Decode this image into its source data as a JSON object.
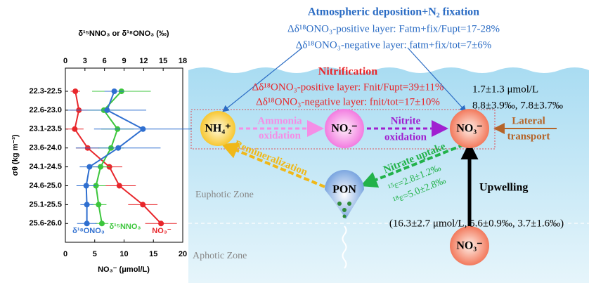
{
  "chart_data": {
    "type": "line",
    "top_axis_title": "δ¹⁵NNO₃ or δ¹⁸ONO₃ (‰)",
    "bottom_axis_title": "NO₃⁻ (μmol/L)",
    "y_axis_title": "σθ (kg m⁻³)",
    "categories": [
      "22.3-22.5",
      "22.6-23.0",
      "23.1-23.5",
      "23.6-24.0",
      "24.1-24.5",
      "24.6-25.0",
      "25.1-25.5",
      "25.6-26.0"
    ],
    "xlim": [
      0,
      20
    ],
    "xticks": [
      0,
      5,
      10,
      15,
      20
    ],
    "x2lim": [
      0,
      18
    ],
    "x2ticks": [
      0,
      3,
      6,
      9,
      12,
      15,
      18
    ],
    "series": [
      {
        "name": "NO₃⁻",
        "color": "#e8262b",
        "axis": "x",
        "values": [
          1.7,
          2.3,
          1.6,
          3.8,
          7.5,
          9.2,
          13.2,
          16.3
        ],
        "errors": [
          0.8,
          1.5,
          1.5,
          2.0,
          2.2,
          2.8,
          2.5,
          2.7
        ]
      },
      {
        "name": "δ¹⁵NNO₃",
        "color": "#3cc63c",
        "axis": "x2",
        "values": [
          8.6,
          5.9,
          8.0,
          7.0,
          5.4,
          4.7,
          5.1,
          5.6
        ],
        "errors": [
          4.5,
          2.5,
          2.5,
          2.0,
          1.5,
          1.5,
          1.2,
          1.0
        ]
      },
      {
        "name": "δ¹⁸ONO₃",
        "color": "#2f6fd0",
        "axis": "x2",
        "values": [
          7.5,
          6.4,
          11.9,
          8.1,
          3.7,
          3.2,
          3.3,
          3.3
        ],
        "errors": [
          1.5,
          6.0,
          7.5,
          6.5,
          1.5,
          1.5,
          1.0,
          1.5
        ]
      }
    ]
  },
  "diagram": {
    "atm_title": "Atmospheric deposition+N₂ fixation",
    "atm_pos": "Δδ¹⁸ONO₃-positive layer: Fatm+fix/Fupt=17-28%",
    "atm_neg": "Δδ¹⁸ONO₃-negative layer: fatm+fix/tot=7±6%",
    "nit_title": "Nitrification",
    "nit_pos": "Δδ¹⁸ONO₃-positive layer: Fnit/Fupt=39±11%",
    "nit_neg": "Δδ¹⁸ONO₃-negative layer: fnit/tot=17±10%",
    "surface_conc": "1.7±1.3 μmol/L",
    "surface_iso": "8.8±3.9‰, 7.8±3.7‰",
    "nodes": [
      "NH₄⁺",
      "NO₂⁻",
      "NO₃⁻",
      "PON",
      "NO₃⁻"
    ],
    "ammonia": [
      "Ammonia",
      "oxidation"
    ],
    "nitrite": [
      "Nitrite",
      "oxidation"
    ],
    "lateral": [
      "Lateral",
      "transport"
    ],
    "remin": "Remineralization",
    "uptake": "Nitrate uptake",
    "eps15": "¹⁵ε=2.8±1.2‰",
    "eps18": "¹⁸ε=5.0±2.8‰",
    "upwelling": "Upwelling",
    "deep": "(16.3±2.7 μmol/L, 5.6±0.9‰, 3.7±1.6‰)",
    "euphotic": "Euphotic Zone",
    "aphotic": "Aphotic Zone"
  }
}
